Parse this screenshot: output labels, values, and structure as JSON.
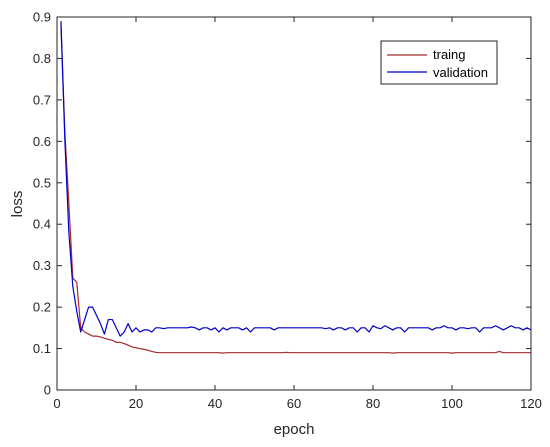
{
  "chart_data": {
    "type": "line",
    "title": "",
    "xlabel": "epoch",
    "ylabel": "loss",
    "xlim": [
      0,
      120
    ],
    "ylim": [
      0,
      0.9
    ],
    "xticks": [
      0,
      20,
      40,
      60,
      80,
      100,
      120
    ],
    "yticks": [
      0,
      0.1,
      0.2,
      0.3,
      0.4,
      0.5,
      0.6,
      0.7,
      0.8,
      0.9
    ],
    "xtick_labels": [
      "0",
      "20",
      "40",
      "60",
      "80",
      "100",
      "120"
    ],
    "ytick_labels": [
      "0",
      "0.1",
      "0.2",
      "0.3",
      "0.4",
      "0.5",
      "0.6",
      "0.7",
      "0.8",
      "0.9"
    ],
    "grid": false,
    "legend_position": "top-right",
    "series": [
      {
        "name": "traing",
        "color": "#a52a2a",
        "x": [
          1,
          2,
          3,
          4,
          5,
          6,
          7,
          8,
          9,
          10,
          11,
          12,
          13,
          14,
          15,
          16,
          17,
          18,
          19,
          20,
          21,
          22,
          23,
          24,
          25,
          26,
          27,
          28,
          29,
          30,
          31,
          32,
          33,
          34,
          35,
          36,
          37,
          38,
          39,
          40,
          41,
          42,
          43,
          44,
          45,
          46,
          47,
          48,
          49,
          50,
          51,
          52,
          53,
          54,
          55,
          56,
          57,
          58,
          59,
          60,
          61,
          62,
          63,
          64,
          65,
          66,
          67,
          68,
          69,
          70,
          71,
          72,
          73,
          74,
          75,
          76,
          77,
          78,
          79,
          80,
          81,
          82,
          83,
          84,
          85,
          86,
          87,
          88,
          89,
          90,
          91,
          92,
          93,
          94,
          95,
          96,
          97,
          98,
          99,
          100,
          101,
          102,
          103,
          104,
          105,
          106,
          107,
          108,
          109,
          110,
          111,
          112,
          113,
          114,
          115,
          116,
          117,
          118,
          119,
          120
        ],
        "y": [
          0.88,
          0.62,
          0.45,
          0.27,
          0.26,
          0.15,
          0.14,
          0.135,
          0.13,
          0.13,
          0.128,
          0.125,
          0.122,
          0.12,
          0.115,
          0.115,
          0.112,
          0.108,
          0.104,
          0.102,
          0.1,
          0.098,
          0.096,
          0.093,
          0.091,
          0.09,
          0.09,
          0.09,
          0.09,
          0.09,
          0.09,
          0.09,
          0.09,
          0.09,
          0.09,
          0.09,
          0.09,
          0.09,
          0.09,
          0.09,
          0.09,
          0.089,
          0.09,
          0.09,
          0.09,
          0.09,
          0.09,
          0.09,
          0.09,
          0.09,
          0.09,
          0.09,
          0.09,
          0.09,
          0.09,
          0.09,
          0.09,
          0.091,
          0.09,
          0.09,
          0.09,
          0.09,
          0.09,
          0.09,
          0.09,
          0.09,
          0.09,
          0.09,
          0.09,
          0.09,
          0.09,
          0.09,
          0.09,
          0.09,
          0.09,
          0.09,
          0.09,
          0.09,
          0.09,
          0.09,
          0.09,
          0.09,
          0.09,
          0.09,
          0.089,
          0.09,
          0.09,
          0.09,
          0.09,
          0.09,
          0.09,
          0.09,
          0.09,
          0.09,
          0.09,
          0.09,
          0.09,
          0.09,
          0.09,
          0.089,
          0.09,
          0.09,
          0.09,
          0.09,
          0.09,
          0.09,
          0.09,
          0.09,
          0.09,
          0.09,
          0.09,
          0.093,
          0.09,
          0.09,
          0.09,
          0.09,
          0.09,
          0.09,
          0.09,
          0.09
        ]
      },
      {
        "name": "validation",
        "color": "#0000cc",
        "x": [
          1,
          2,
          3,
          4,
          5,
          6,
          7,
          8,
          9,
          10,
          11,
          12,
          13,
          14,
          15,
          16,
          17,
          18,
          19,
          20,
          21,
          22,
          23,
          24,
          25,
          26,
          27,
          28,
          29,
          30,
          31,
          32,
          33,
          34,
          35,
          36,
          37,
          38,
          39,
          40,
          41,
          42,
          43,
          44,
          45,
          46,
          47,
          48,
          49,
          50,
          51,
          52,
          53,
          54,
          55,
          56,
          57,
          58,
          59,
          60,
          61,
          62,
          63,
          64,
          65,
          66,
          67,
          68,
          69,
          70,
          71,
          72,
          73,
          74,
          75,
          76,
          77,
          78,
          79,
          80,
          81,
          82,
          83,
          84,
          85,
          86,
          87,
          88,
          89,
          90,
          91,
          92,
          93,
          94,
          95,
          96,
          97,
          98,
          99,
          100,
          101,
          102,
          103,
          104,
          105,
          106,
          107,
          108,
          109,
          110,
          111,
          112,
          113,
          114,
          115,
          116,
          117,
          118,
          119,
          120
        ],
        "y": [
          0.89,
          0.6,
          0.38,
          0.25,
          0.19,
          0.14,
          0.17,
          0.2,
          0.2,
          0.18,
          0.16,
          0.135,
          0.17,
          0.17,
          0.15,
          0.13,
          0.14,
          0.16,
          0.14,
          0.15,
          0.14,
          0.145,
          0.145,
          0.14,
          0.15,
          0.15,
          0.148,
          0.15,
          0.15,
          0.15,
          0.15,
          0.15,
          0.15,
          0.152,
          0.15,
          0.145,
          0.15,
          0.15,
          0.145,
          0.15,
          0.14,
          0.15,
          0.145,
          0.15,
          0.15,
          0.15,
          0.145,
          0.15,
          0.14,
          0.15,
          0.15,
          0.15,
          0.15,
          0.15,
          0.145,
          0.15,
          0.15,
          0.15,
          0.15,
          0.15,
          0.15,
          0.15,
          0.15,
          0.15,
          0.15,
          0.15,
          0.15,
          0.148,
          0.15,
          0.145,
          0.15,
          0.15,
          0.145,
          0.15,
          0.15,
          0.14,
          0.15,
          0.15,
          0.14,
          0.155,
          0.15,
          0.148,
          0.155,
          0.15,
          0.145,
          0.15,
          0.15,
          0.14,
          0.15,
          0.15,
          0.15,
          0.15,
          0.15,
          0.15,
          0.145,
          0.15,
          0.15,
          0.155,
          0.15,
          0.15,
          0.145,
          0.15,
          0.15,
          0.148,
          0.15,
          0.15,
          0.14,
          0.15,
          0.15,
          0.15,
          0.155,
          0.15,
          0.145,
          0.15,
          0.155,
          0.15,
          0.15,
          0.145,
          0.15,
          0.145
        ]
      }
    ]
  }
}
